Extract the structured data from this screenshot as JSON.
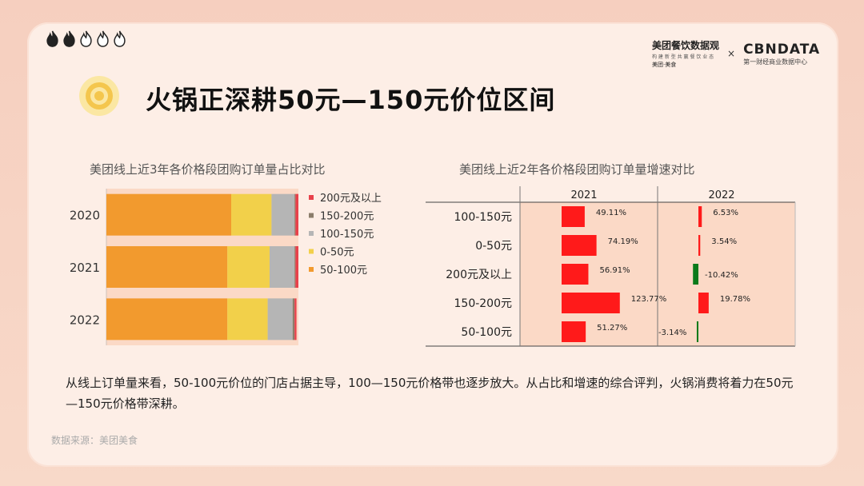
{
  "title": "火锅正深耕50元—150元价位区间",
  "flames": {
    "filled": 2,
    "total": 5,
    "filled_color": "#222222",
    "empty_color": "#ffffff"
  },
  "brand": {
    "left_name": "美团餐饮数据观",
    "left_sub": "构 建 新 型 共 赢 餐 饮 业 态",
    "left_tag": "美团·美食",
    "separator": "×",
    "right_name": "CBNDATA",
    "right_sub": "第一财经商业数据中心"
  },
  "colors": {
    "accent_orange": "#f29a2e",
    "yellow": "#f2d04a",
    "gray": "#b5b5b5",
    "brown": "#8b7d6b",
    "red": "#e8414b",
    "growth_red": "#ff1a1a",
    "growth_green": "#0a7a1a"
  },
  "chart_data": [
    {
      "type": "bar",
      "stacked": true,
      "orientation": "horizontal",
      "title": "美团线上近3年各价格段团购订单量占比对比",
      "categories": [
        "2020",
        "2021",
        "2022"
      ],
      "series": [
        {
          "name": "50-100元",
          "values": [
            0.65,
            0.63,
            0.63
          ]
        },
        {
          "name": "0-50元",
          "values": [
            0.21,
            0.22,
            0.21
          ]
        },
        {
          "name": "100-150元",
          "values": [
            0.12,
            0.13,
            0.13
          ]
        },
        {
          "name": "150-200元",
          "values": [
            0.005,
            0.005,
            0.01
          ]
        },
        {
          "name": "200元及以上",
          "values": [
            0.015,
            0.015,
            0.01
          ]
        }
      ],
      "legend": [
        "200元及以上",
        "150-200元",
        "100-150元",
        "0-50元",
        "50-100元"
      ],
      "legend_position": "right"
    },
    {
      "type": "bar",
      "orientation": "horizontal",
      "title": "美团线上近2年各价格段团购订单量增速对比",
      "categories": [
        "100-150元",
        "0-50元",
        "200元及以上",
        "150-200元",
        "50-100元"
      ],
      "series": [
        {
          "name": "2021",
          "values": [
            49.11,
            74.19,
            56.91,
            123.77,
            51.27
          ],
          "labels": [
            "49.11%",
            "74.19%",
            "56.91%",
            "123.77%",
            "51.27%"
          ]
        },
        {
          "name": "2022",
          "values": [
            6.53,
            3.54,
            -10.42,
            19.78,
            -3.14
          ],
          "labels": [
            "6.53%",
            "3.54%",
            "-10.42%",
            "19.78%",
            "-3.14%"
          ]
        }
      ]
    }
  ],
  "body_text": "从线上订单量来看，50-100元价位的门店占据主导，100—150元价格带也逐步放大。从占比和增速的综合评判，火锅消费将着力在50元—150元价格带深耕。",
  "source": "数据来源：美团美食"
}
